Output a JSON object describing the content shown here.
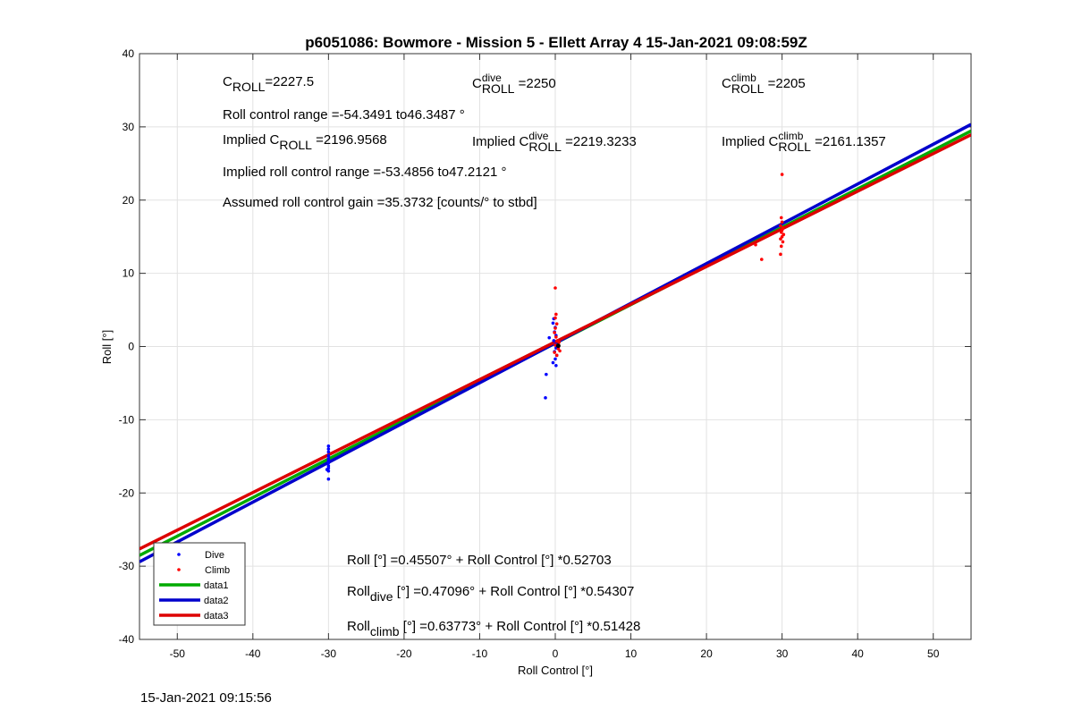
{
  "footer_timestamp": "15-Jan-2021 09:15:56",
  "chart_data": {
    "type": "scatter",
    "title": "p6051086: Bowmore - Mission 5 - Ellett Array 4 15-Jan-2021 09:08:59Z",
    "xlabel": "Roll Control [°]",
    "ylabel": "Roll [°]",
    "xlim": [
      -55,
      55
    ],
    "ylim": [
      -40,
      40
    ],
    "xticks": [
      -50,
      -40,
      -30,
      -20,
      -10,
      0,
      10,
      20,
      30,
      40,
      50
    ],
    "yticks": [
      -40,
      -30,
      -20,
      -10,
      0,
      10,
      20,
      30,
      40
    ],
    "grid": true,
    "legend_position": "bottom-left",
    "series": [
      {
        "name": "Dive",
        "kind": "points",
        "color": "#0000ff",
        "points": [
          [
            -30,
            -14
          ],
          [
            -30,
            -13.6
          ],
          [
            -30,
            -14.4
          ],
          [
            -30,
            -14.9
          ],
          [
            -30,
            -15.3
          ],
          [
            -30,
            -15.6
          ],
          [
            -30,
            -15.9
          ],
          [
            -30,
            -16.3
          ],
          [
            -30,
            -16.6
          ],
          [
            -30,
            -17
          ],
          [
            -30,
            -18.1
          ],
          [
            -30.2,
            -16.8
          ],
          [
            -0.8,
            1.2
          ],
          [
            -0.2,
            3.8
          ],
          [
            -0.3,
            3.2
          ],
          [
            0,
            2.6
          ],
          [
            -0.1,
            2
          ],
          [
            0.1,
            1.5
          ],
          [
            -0.2,
            0.8
          ],
          [
            0,
            0.3
          ],
          [
            0.1,
            -0.2
          ],
          [
            -0.1,
            -0.7
          ],
          [
            0.2,
            -1.2
          ],
          [
            0,
            -1.7
          ],
          [
            -0.3,
            -2.2
          ],
          [
            0.1,
            -2.6
          ],
          [
            -1.2,
            -3.8
          ],
          [
            -1.3,
            -7
          ]
        ]
      },
      {
        "name": "Climb",
        "kind": "points",
        "color": "#ff0000",
        "points": [
          [
            30,
            23.5
          ],
          [
            29.9,
            17.6
          ],
          [
            30,
            17
          ],
          [
            29.8,
            16.5
          ],
          [
            30.1,
            16.2
          ],
          [
            30,
            15.9
          ],
          [
            29.9,
            15.6
          ],
          [
            30.2,
            15.3
          ],
          [
            30,
            15
          ],
          [
            29.8,
            14.7
          ],
          [
            30.1,
            14.3
          ],
          [
            29.9,
            13.7
          ],
          [
            29.8,
            12.6
          ],
          [
            26.5,
            13.9
          ],
          [
            27.3,
            11.9
          ],
          [
            0,
            8
          ],
          [
            0.1,
            4.4
          ],
          [
            0,
            3.9
          ],
          [
            0.2,
            3.1
          ],
          [
            0,
            2.5
          ],
          [
            -0.1,
            1.9
          ],
          [
            0.1,
            1.3
          ],
          [
            0.3,
            0.8
          ],
          [
            0,
            0.2
          ],
          [
            0.4,
            -0.3
          ],
          [
            -0.1,
            -0.8
          ],
          [
            0.2,
            -1.2
          ],
          [
            0.6,
            -0.6
          ],
          [
            0.5,
            0.6
          ]
        ]
      },
      {
        "name": "data1",
        "kind": "line",
        "color": "#00aa00",
        "intercept": 0.45507,
        "slope": 0.52703
      },
      {
        "name": "data2",
        "kind": "line",
        "color": "#0000cc",
        "intercept": 0.47096,
        "slope": 0.54307
      },
      {
        "name": "data3",
        "kind": "line",
        "color": "#dd0000",
        "intercept": 0.63773,
        "slope": 0.51428
      }
    ],
    "annotations": {
      "c_roll": {
        "base": "C",
        "sub": "ROLL",
        "value": "=2227.5"
      },
      "c_roll_dive": {
        "base": "C",
        "sub": "ROLL",
        "sup": "dive",
        "value": "=2250"
      },
      "c_roll_climb": {
        "base": "C",
        "sub": "ROLL",
        "sup": "climb",
        "value": "=2205"
      },
      "roll_range": "Roll control range =-54.3491 to46.3487 °",
      "implied_c_roll": {
        "prefix": "Implied C",
        "sub": "ROLL",
        "value": " =2196.9568"
      },
      "implied_c_roll_dive": {
        "prefix": "Implied C",
        "sub": "ROLL",
        "sup": "dive",
        "value": "=2219.3233"
      },
      "implied_c_roll_climb": {
        "prefix": "Implied C",
        "sub": "ROLL",
        "sup": "climb",
        "value": "=2161.1357"
      },
      "implied_range": "Implied roll control range =-53.4856 to47.2121 °",
      "gain": "Assumed roll control gain =35.3732 [counts/° to stbd]",
      "eq_all": "Roll [°] =0.45507° + Roll Control [°] *0.52703",
      "eq_dive": {
        "base": "Roll",
        "sub": "dive",
        "rest": " [°] =0.47096° + Roll Control [°] *0.54307"
      },
      "eq_climb": {
        "base": "Roll",
        "sub": "climb",
        "rest": " [°] =0.63773° + Roll Control [°] *0.51428"
      }
    }
  }
}
